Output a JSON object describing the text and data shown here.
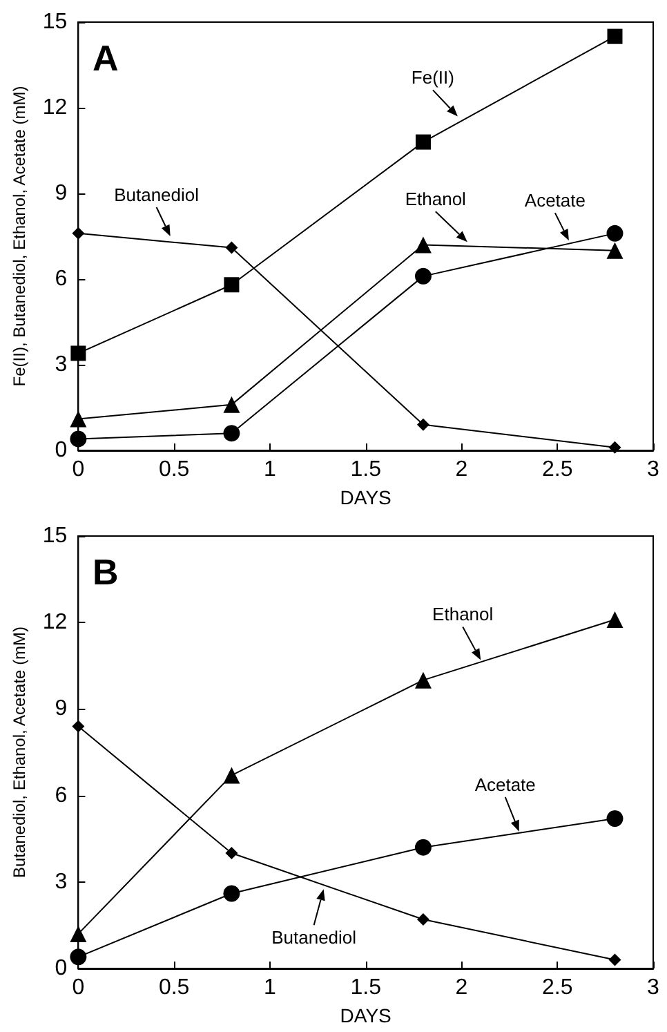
{
  "chart_data": [
    {
      "type": "line",
      "title": "A",
      "xlabel": "DAYS",
      "ylabel": "Fe(II), Butanediol, Ethanol, Acetate (mM)",
      "xlim": [
        0,
        3
      ],
      "xticks": [
        0,
        0.5,
        1,
        1.5,
        2,
        2.5,
        3
      ],
      "ylim": [
        0,
        15
      ],
      "yticks": [
        0,
        3,
        6,
        9,
        12,
        15
      ],
      "grid": false,
      "x": [
        0,
        0.8,
        1.8,
        2.8
      ],
      "series": [
        {
          "color": "#000000",
          "marker": "square",
          "values": [
            3.4,
            5.8,
            10.8,
            14.5
          ]
        },
        {
          "color": "#000000",
          "marker": "diamond",
          "values": [
            7.6,
            7.1,
            0.9,
            0.1
          ]
        },
        {
          "color": "#000000",
          "marker": "triangle",
          "values": [
            1.1,
            1.6,
            7.2,
            7.0
          ]
        },
        {
          "color": "#000000",
          "marker": "circle",
          "values": [
            0.4,
            0.6,
            6.1,
            7.6
          ]
        }
      ],
      "annotations": [
        {
          "text": "Fe(II)",
          "x": 1.98,
          "y": 11.7
        },
        {
          "text": "Butanediol",
          "x": 0.48,
          "y": 7.5
        },
        {
          "text": "Ethanol",
          "x": 2.03,
          "y": 7.3
        },
        {
          "text": "Acetate",
          "x": 2.56,
          "y": 7.35
        }
      ]
    },
    {
      "type": "line",
      "title": "B",
      "xlabel": "DAYS",
      "ylabel": "Butanediol, Ethanol, Acetate (mM)",
      "xlim": [
        0,
        3
      ],
      "xticks": [
        0,
        0.5,
        1,
        1.5,
        2,
        2.5,
        3
      ],
      "ylim": [
        0,
        15
      ],
      "yticks": [
        0,
        3,
        6,
        9,
        12,
        15
      ],
      "grid": false,
      "x": [
        0,
        0.8,
        1.8,
        2.8
      ],
      "series": [
        {
          "color": "#000000",
          "marker": "triangle",
          "values": [
            1.2,
            6.7,
            10.0,
            12.1
          ]
        },
        {
          "color": "#000000",
          "marker": "diamond",
          "values": [
            8.4,
            4.0,
            1.7,
            0.3
          ]
        },
        {
          "color": "#000000",
          "marker": "circle",
          "values": [
            0.4,
            2.6,
            4.2,
            5.2
          ]
        }
      ],
      "annotations": [
        {
          "text": "Ethanol",
          "x": 2.1,
          "y": 10.7
        },
        {
          "text": "Acetate",
          "x": 2.3,
          "y": 4.75
        },
        {
          "text": "Butanediol",
          "x": 1.28,
          "y": 2.75
        }
      ]
    }
  ]
}
